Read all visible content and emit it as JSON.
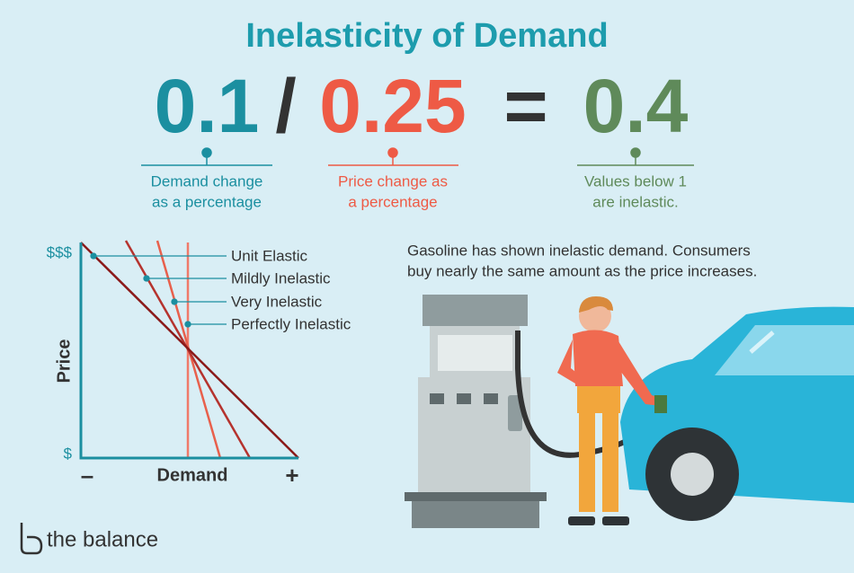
{
  "title": "Inelasticity of Demand",
  "equation": {
    "demand": {
      "value": "0.1",
      "caption": [
        "Demand change",
        "as a percentage"
      ]
    },
    "divide": "/",
    "price": {
      "value": "0.25",
      "caption": [
        "Price change as",
        "a percentage"
      ]
    },
    "equals": "=",
    "result": {
      "value": "0.4",
      "caption": [
        "Values below 1",
        "are inelastic."
      ]
    }
  },
  "graph": {
    "y_label": "Price",
    "y_top": "$$$",
    "y_bottom": "$",
    "x_label": "Demand",
    "x_left": "–",
    "x_right": "+",
    "curves": [
      "Unit Elastic",
      "Mildly Inelastic",
      "Very Inelastic",
      "Perfectly Inelastic"
    ]
  },
  "description": [
    "Gasoline has shown inelastic demand. Consumers",
    "buy nearly the same amount as the price increases."
  ],
  "logo": "the balance"
}
